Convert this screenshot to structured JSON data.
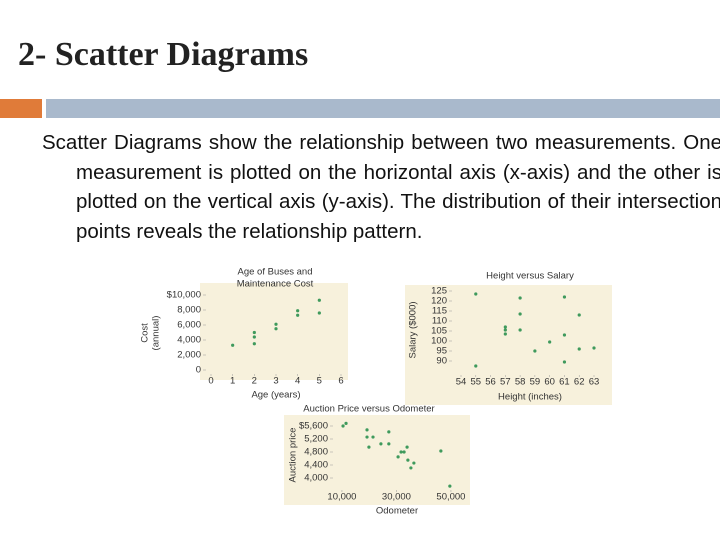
{
  "header": {
    "title": "2- Scatter Diagrams"
  },
  "body": {
    "text": "Scatter Diagrams show the relationship between two measurements. One measurement is plotted on the horizontal axis (x-axis) and the other is plotted on the vertical axis (y-axis). The distribution of their intersection points reveals the relationship pattern."
  },
  "chart_data": [
    {
      "type": "scatter",
      "title": [
        "Age of Buses and",
        "Maintenance Cost"
      ],
      "x_label": "Age (years)",
      "y_label": [
        "Cost",
        "(annual)"
      ],
      "color": "#3f9a5c",
      "x": [
        1,
        2,
        2,
        2,
        3,
        3,
        4,
        4,
        5,
        5
      ],
      "values": [
        3300,
        5000,
        4400,
        3500,
        6100,
        5500,
        7900,
        7300,
        9300,
        7600
      ],
      "xlim": [
        0,
        6
      ],
      "xticks": [
        0,
        1,
        2,
        3,
        4,
        5,
        6
      ],
      "ylim": [
        0,
        10000
      ],
      "yticks": [
        0,
        {
          "value": 2000,
          "label": "2,000"
        },
        {
          "value": 4000,
          "label": "4,000"
        },
        {
          "value": 6000,
          "label": "6,000"
        },
        {
          "value": 8000,
          "label": "8,000"
        },
        {
          "value": 10000,
          "label": "$10,000"
        }
      ]
    },
    {
      "type": "scatter",
      "title": [
        "Height versus Salary"
      ],
      "x_label": "Height (inches)",
      "y_label": [
        "Salary ($000)"
      ],
      "color": "#3f9a5c",
      "x": [
        55,
        55,
        57,
        57,
        57,
        58,
        58,
        58,
        59,
        60,
        61,
        61,
        61,
        62,
        62,
        63
      ],
      "values": [
        123.5,
        87.5,
        107,
        105.5,
        103.5,
        121.5,
        113.5,
        105.5,
        95,
        99.5,
        122,
        103,
        89.5,
        113,
        96,
        96.5
      ],
      "xlim": [
        54,
        63
      ],
      "xticks": [
        54,
        55,
        56,
        57,
        58,
        59,
        60,
        61,
        62,
        63
      ],
      "ylim": [
        88,
        127
      ],
      "yticks": [
        90,
        95,
        100,
        105,
        110,
        115,
        120,
        125
      ]
    },
    {
      "type": "scatter",
      "title": [
        "Auction Price versus Odometer"
      ],
      "x_label": "Odometer",
      "y_label": [
        "Auction price"
      ],
      "color": "#3f9a5c",
      "x": [
        10400,
        11500,
        19200,
        19200,
        21400,
        19900,
        24300,
        27200,
        27200,
        30600,
        31700,
        32800,
        33900,
        34200,
        35300,
        36400,
        46300,
        49600
      ],
      "values": [
        5600,
        5680,
        5480,
        5260,
        5260,
        4950,
        5050,
        5420,
        5050,
        4650,
        4800,
        4800,
        4950,
        4550,
        4310,
        4460,
        4830,
        3750
      ],
      "xlim": [
        8000,
        52000
      ],
      "xticks": [
        {
          "value": 10000,
          "label": "10,000"
        },
        {
          "value": 30000,
          "label": "30,000"
        },
        {
          "value": 50000,
          "label": "50,000"
        }
      ],
      "ylim": [
        3700,
        5800
      ],
      "yticks": [
        {
          "value": 4000,
          "label": "4,000"
        },
        {
          "value": 4400,
          "label": "4,400"
        },
        {
          "value": 4800,
          "label": "4,800"
        },
        {
          "value": 5200,
          "label": "5,200"
        },
        {
          "value": 5600,
          "label": "$5,600"
        }
      ]
    }
  ]
}
